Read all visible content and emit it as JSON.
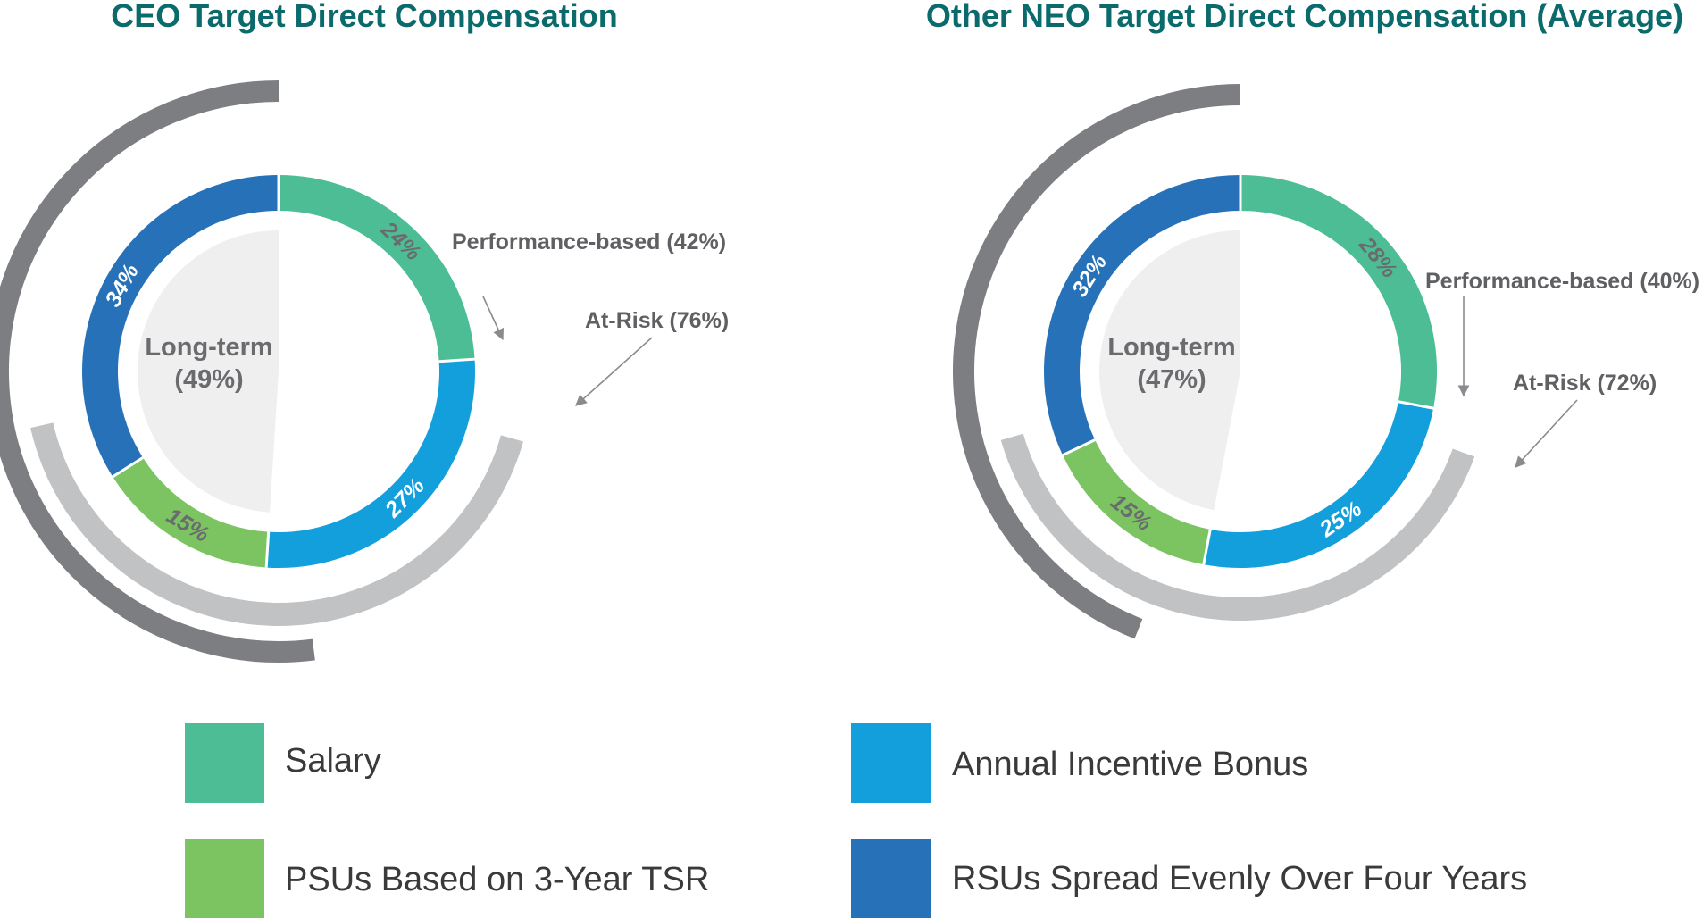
{
  "colors": {
    "title": "#0b6a6b",
    "salary": "#4dbd96",
    "annual_incentive_bonus": "#139fdb",
    "psus": "#7cc362",
    "rsus": "#2771b8",
    "long_term_fill": "#efefef",
    "at_risk_arc": "#7d7e82",
    "performance_arc": "#c1c2c4",
    "callout_text": "#5f6063",
    "center_text": "#6a6b6e",
    "arrow": "#8a8b8e"
  },
  "chart_data": [
    {
      "type": "pie",
      "title": "CEO Target Direct Compensation",
      "categories": [
        "Salary",
        "Annual Incentive Bonus",
        "PSUs Based on 3-Year TSR",
        "RSUs Spread Evenly Over Four Years"
      ],
      "values": [
        24,
        27,
        15,
        34
      ],
      "value_labels": [
        "24%",
        "27%",
        "15%",
        "34%"
      ],
      "center_label": {
        "line1": "Long-term",
        "line2": "(49%)",
        "value": 49
      },
      "performance_based": {
        "label": "Performance-based (42%)",
        "value": 42
      },
      "at_risk": {
        "label": "At-Risk (76%)",
        "value": 76
      }
    },
    {
      "type": "pie",
      "title": "Other NEO Target Direct Compensation (Average)",
      "categories": [
        "Salary",
        "Annual Incentive Bonus",
        "PSUs Based on 3-Year TSR",
        "RSUs Spread Evenly Over Four Years"
      ],
      "values": [
        28,
        25,
        15,
        32
      ],
      "value_labels": [
        "28%",
        "25%",
        "15%",
        "32%"
      ],
      "center_label": {
        "line1": "Long-term",
        "line2": "(47%)",
        "value": 47
      },
      "performance_based": {
        "label": "Performance-based (40%)",
        "value": 40
      },
      "at_risk": {
        "label": "At-Risk (72%)",
        "value": 72
      }
    }
  ],
  "legend": [
    {
      "label": "Salary",
      "color_key": "salary"
    },
    {
      "label": "Annual Incentive Bonus",
      "color_key": "annual_incentive_bonus"
    },
    {
      "label": "PSUs Based on 3-Year TSR",
      "color_key": "psus"
    },
    {
      "label": "RSUs Spread Evenly Over Four Years",
      "color_key": "rsus"
    }
  ]
}
